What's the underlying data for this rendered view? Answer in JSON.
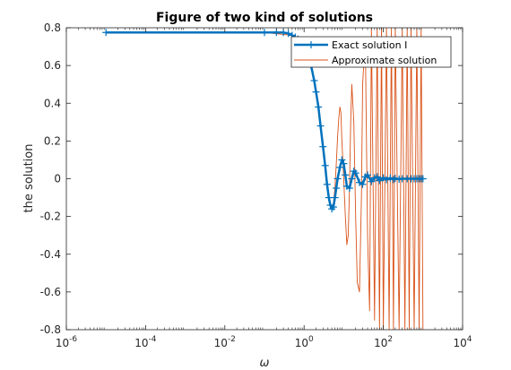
{
  "chart_data": {
    "type": "line",
    "title": "Figure of two kind of solutions",
    "xlabel": "ω",
    "ylabel": "the solution",
    "xscale": "log",
    "xlim": [
      1e-06,
      10000.0
    ],
    "ylim": [
      -0.8,
      0.8
    ],
    "xticks": [
      1e-06,
      0.0001,
      0.01,
      1.0,
      100.0,
      10000.0
    ],
    "xtick_labels": [
      {
        "base": "10",
        "exp": "-6"
      },
      {
        "base": "10",
        "exp": "-4"
      },
      {
        "base": "10",
        "exp": "-2"
      },
      {
        "base": "10",
        "exp": "0"
      },
      {
        "base": "10",
        "exp": "2"
      },
      {
        "base": "10",
        "exp": "4"
      }
    ],
    "yticks": [
      "-0.8",
      "-0.6",
      "-0.4",
      "-0.2",
      "0",
      "0.2",
      "0.4",
      "0.6",
      "0.8"
    ],
    "grid": false,
    "legend_position": "top-right",
    "series": [
      {
        "name": "Exact solution I",
        "color": "#0072BD",
        "marker": "plus",
        "x": [
          1e-05,
          0.1,
          0.2,
          0.3,
          0.4,
          0.5,
          0.6,
          0.7,
          0.8,
          1.0,
          1.2,
          1.5,
          1.8,
          2.0,
          2.3,
          2.6,
          3.0,
          3.4,
          3.8,
          4.2,
          4.6,
          5.0,
          5.5,
          6.0,
          6.5,
          7.0,
          8.0,
          9.0,
          10,
          11,
          12,
          14,
          16,
          18,
          20,
          25,
          30,
          35,
          40,
          50,
          60,
          70,
          80,
          100,
          120,
          150,
          180,
          200,
          250,
          300,
          400,
          500,
          600,
          700,
          800,
          900,
          1000
        ],
        "y": [
          0.775,
          0.775,
          0.775,
          0.775,
          0.77,
          0.76,
          0.75,
          0.74,
          0.73,
          0.7,
          0.66,
          0.6,
          0.52,
          0.46,
          0.38,
          0.28,
          0.17,
          0.07,
          -0.03,
          -0.1,
          -0.14,
          -0.16,
          -0.15,
          -0.1,
          -0.05,
          0.0,
          0.06,
          0.1,
          0.08,
          0.02,
          -0.04,
          -0.05,
          0.0,
          0.04,
          0.03,
          -0.02,
          -0.03,
          0.01,
          0.02,
          -0.015,
          0.005,
          0.01,
          -0.01,
          0.005,
          -0.005,
          0.004,
          -0.004,
          0.002,
          -0.002,
          0.0,
          0.0,
          0.0,
          0.0,
          0.0,
          0.0,
          0.0,
          0.0
        ]
      },
      {
        "name": "Approximate solution",
        "color": "#D95319",
        "marker": "none",
        "x": [
          1e-05,
          0.1,
          0.5,
          1.0,
          1.5,
          2.0,
          2.5,
          3.0,
          3.5,
          4.0,
          4.5,
          5.0,
          5.5,
          6.0,
          6.5,
          7.0,
          7.5,
          8.0,
          8.5,
          9.0,
          10,
          11,
          12,
          13,
          14,
          15,
          16,
          18,
          20,
          22,
          25,
          28,
          30,
          35,
          40,
          45,
          50,
          60,
          70,
          80,
          90,
          100,
          120,
          140,
          160,
          180,
          200,
          250,
          300,
          350,
          400,
          450,
          500,
          600,
          700,
          800,
          900,
          1000
        ],
        "y": [
          0.775,
          0.775,
          0.76,
          0.7,
          0.6,
          0.46,
          0.33,
          0.18,
          0.05,
          -0.05,
          -0.12,
          -0.15,
          -0.13,
          -0.05,
          0.08,
          0.22,
          0.32,
          0.38,
          0.35,
          0.2,
          0.0,
          -0.2,
          -0.35,
          -0.3,
          -0.05,
          0.3,
          0.5,
          0.3,
          -0.2,
          -0.55,
          -0.6,
          -0.1,
          0.5,
          0.75,
          -0.3,
          -0.7,
          0.8,
          -0.75,
          0.8,
          -0.8,
          0.8,
          -0.8,
          0.8,
          -0.8,
          0.8,
          -0.8,
          0.8,
          -0.8,
          0.8,
          -0.8,
          0.8,
          -0.8,
          0.8,
          -0.8,
          0.8,
          -0.8,
          0.8,
          -0.8
        ]
      }
    ]
  }
}
